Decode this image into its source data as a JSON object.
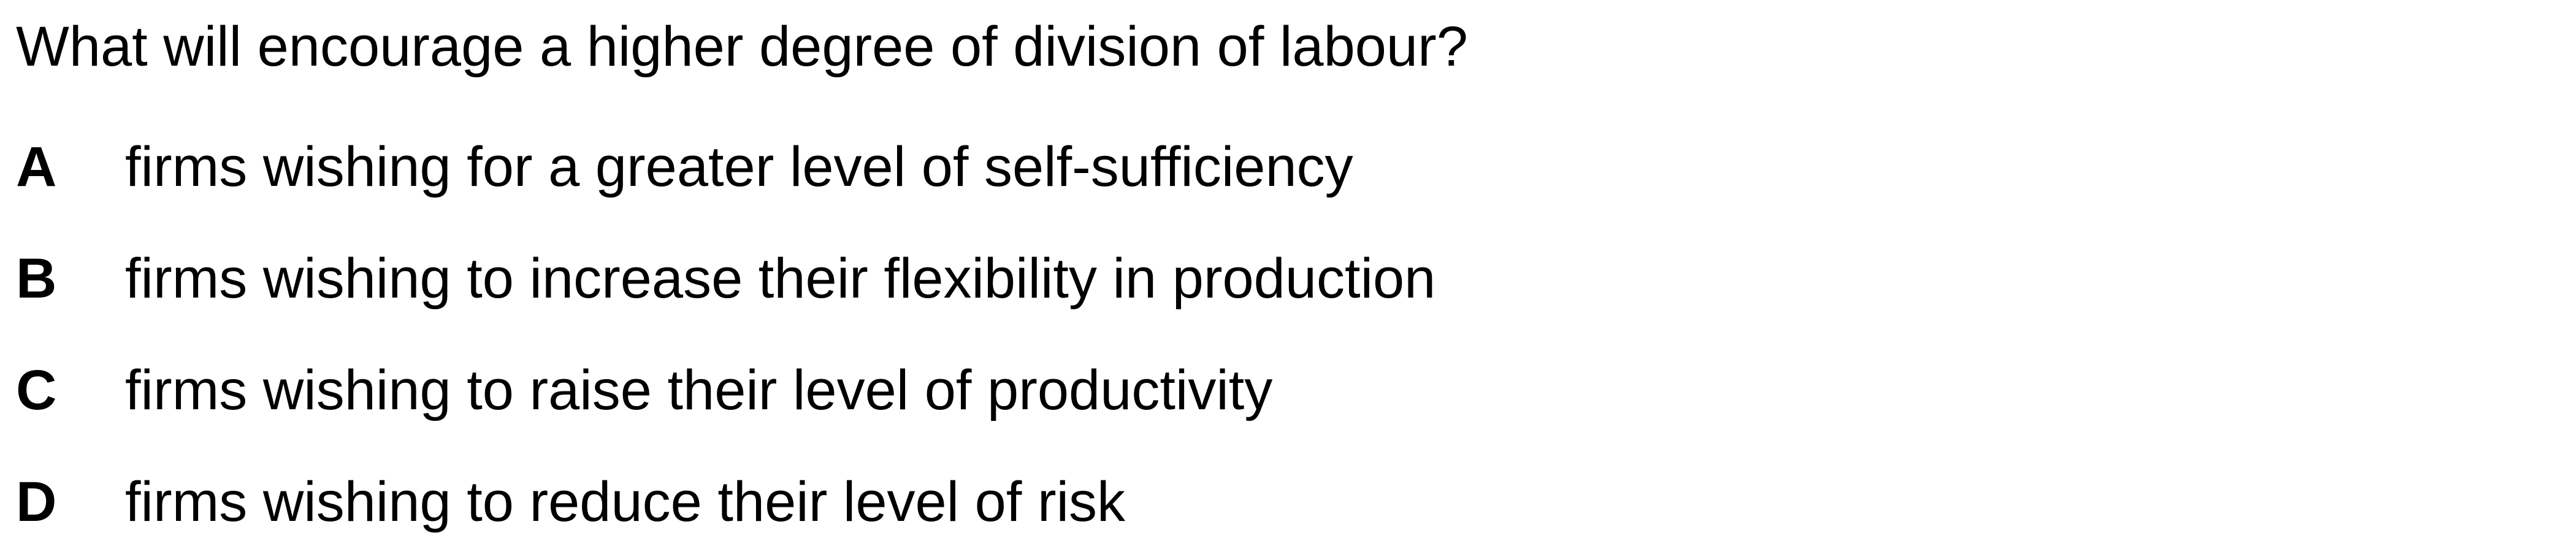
{
  "question": {
    "text": "What will encourage a higher degree of division of labour?"
  },
  "options": [
    {
      "letter": "A",
      "text": "firms wishing for a greater level of self-sufficiency"
    },
    {
      "letter": "B",
      "text": "firms wishing to increase their flexibility in production"
    },
    {
      "letter": "C",
      "text": "firms wishing to raise their level of productivity"
    },
    {
      "letter": "D",
      "text": "firms wishing to reduce their level of risk"
    }
  ]
}
